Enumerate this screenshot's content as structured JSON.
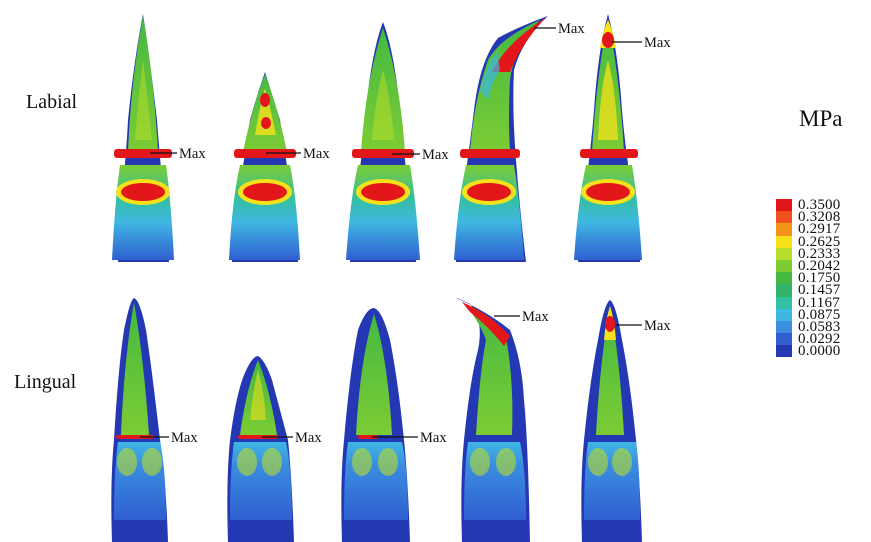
{
  "rows": {
    "labial": "Labial",
    "lingual": "Lingual"
  },
  "max_label": "Max",
  "legend": {
    "title": "MPa",
    "entries": [
      {
        "value": "0.3500",
        "color": "#e3171a"
      },
      {
        "value": "0.3208",
        "color": "#f0501b"
      },
      {
        "value": "0.2917",
        "color": "#f7921c"
      },
      {
        "value": "0.2625",
        "color": "#f5e21b"
      },
      {
        "value": "0.2333",
        "color": "#b7dc2a"
      },
      {
        "value": "0.2042",
        "color": "#7ccc34"
      },
      {
        "value": "0.1750",
        "color": "#44b941"
      },
      {
        "value": "0.1457",
        "color": "#2fb46a"
      },
      {
        "value": "0.1167",
        "color": "#34bfa0"
      },
      {
        "value": "0.0875",
        "color": "#3fb7e3"
      },
      {
        "value": "0.0583",
        "color": "#3a8de0"
      },
      {
        "value": "0.0292",
        "color": "#2f5fd0"
      },
      {
        "value": "0.0000",
        "color": "#2438b4"
      }
    ]
  }
}
